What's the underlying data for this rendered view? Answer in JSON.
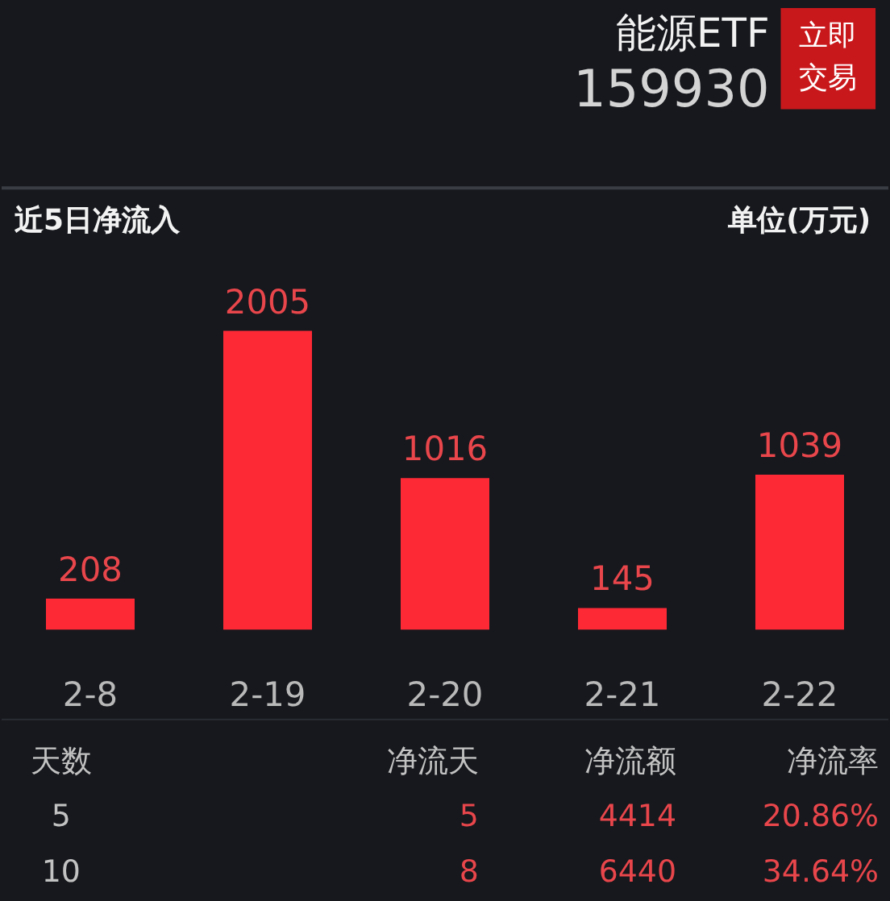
{
  "chart_data": [
    {
      "type": "other",
      "title": "能源ETF",
      "subtitle": "159930",
      "annotations": [
        "立即交易"
      ]
    },
    {
      "type": "bar",
      "title": "近5日净流入",
      "annotations": [
        "单位(万元)"
      ],
      "categories": [
        "2-8",
        "2-19",
        "2-20",
        "2-21",
        "2-22"
      ],
      "values": [
        208,
        2005,
        1016,
        145,
        1039
      ],
      "color": "#fd2a36",
      "data_labels": true
    },
    {
      "type": "other",
      "annotations": [
        "天数",
        "净流天",
        "净流额",
        "净流率",
        "5",
        "5",
        "4414",
        "20.86%",
        "10",
        "8",
        "6440",
        "34.64%"
      ]
    }
  ]
}
